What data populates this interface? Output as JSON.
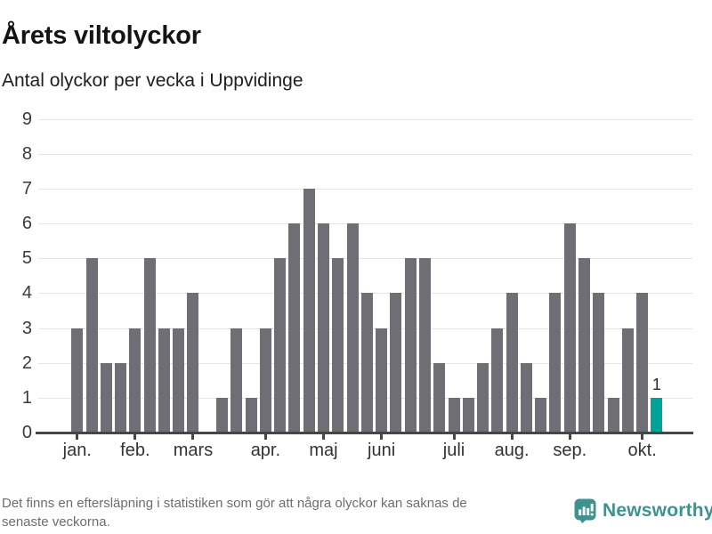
{
  "header": {
    "title": "Årets viltolyckor",
    "subtitle": "Antal olyckor per vecka i Uppvidinge"
  },
  "chart_data": {
    "type": "bar",
    "title": "Årets viltolyckor",
    "subtitle": "Antal olyckor per vecka i Uppvidinge",
    "x_unit": "week",
    "values": [
      3,
      5,
      2,
      2,
      3,
      5,
      3,
      3,
      4,
      0,
      1,
      3,
      1,
      3,
      5,
      6,
      7,
      6,
      5,
      6,
      4,
      3,
      4,
      5,
      5,
      2,
      1,
      1,
      2,
      3,
      4,
      2,
      1,
      4,
      6,
      5,
      4,
      1,
      3,
      4,
      1
    ],
    "yticks": [
      0,
      1,
      2,
      3,
      4,
      5,
      6,
      7,
      8,
      9
    ],
    "ylim": [
      0,
      9
    ],
    "grid": true,
    "legend": "none",
    "month_ticks": [
      {
        "label": "jan.",
        "week_index": 0
      },
      {
        "label": "feb.",
        "week_index": 4
      },
      {
        "label": "mars",
        "week_index": 8
      },
      {
        "label": "apr.",
        "week_index": 13
      },
      {
        "label": "maj",
        "week_index": 17
      },
      {
        "label": "juni",
        "week_index": 21
      },
      {
        "label": "juli",
        "week_index": 26
      },
      {
        "label": "aug.",
        "week_index": 30
      },
      {
        "label": "sep.",
        "week_index": 34
      },
      {
        "label": "okt.",
        "week_index": 39
      }
    ],
    "highlight_index": 40,
    "highlight_label": "1",
    "bar_color": "#6F6E74",
    "highlight_color": "#00A39A"
  },
  "footer": {
    "note_lines": [
      "Det finns en eftersläpning i statistiken som gör att några olyckor kan saknas de",
      "senaste veckorna."
    ],
    "brand": "Newsworthy",
    "brand_color": "#3E938E"
  }
}
